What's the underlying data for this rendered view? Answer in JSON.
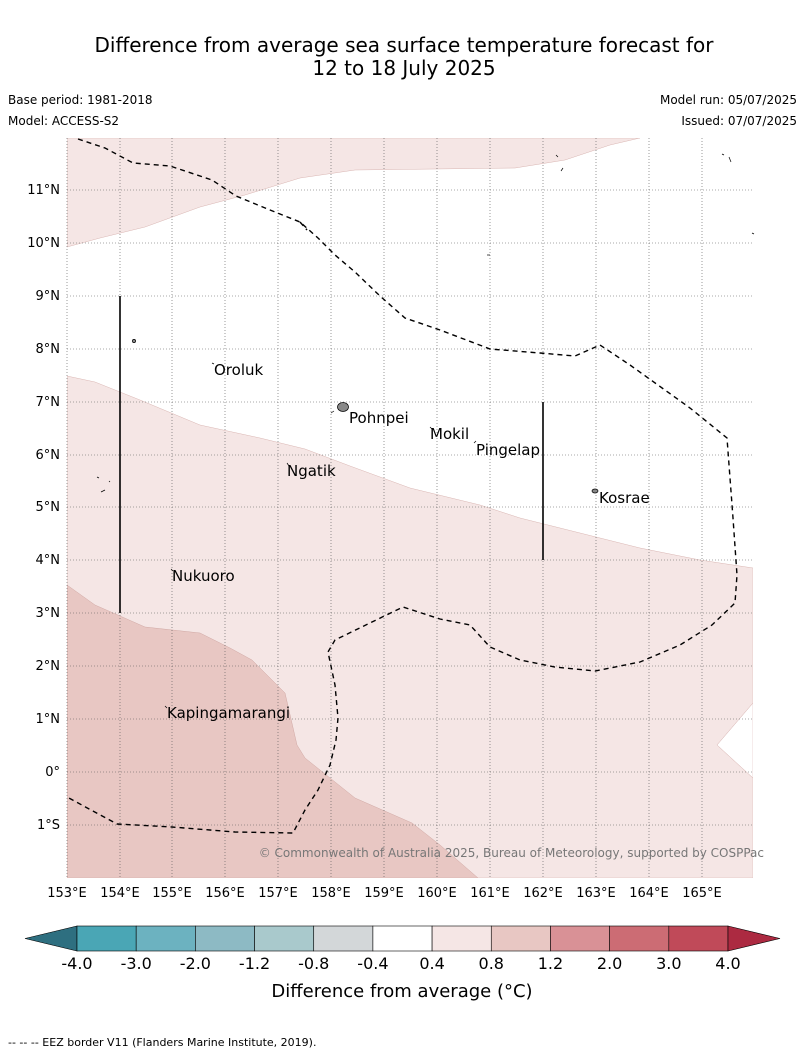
{
  "title_line1": "Difference from average sea surface temperature forecast for",
  "title_line2": "12 to 18 July 2025",
  "base_period": "Base period: 1981-2018",
  "model": "Model: ACCESS-S2",
  "model_run": "Model run: 05/07/2025",
  "issued": "Issued: 07/07/2025",
  "copyright": "© Commonwealth of Australia 2025, Bureau of Meteorology, supported by COSPPac",
  "lat_labels": [
    "11°N",
    "10°N",
    "9°N",
    "8°N",
    "7°N",
    "6°N",
    "5°N",
    "4°N",
    "3°N",
    "2°N",
    "1°N",
    "0°",
    "1°S"
  ],
  "lon_labels": [
    "153°E",
    "154°E",
    "155°E",
    "156°E",
    "157°E",
    "158°E",
    "159°E",
    "160°E",
    "161°E",
    "162°E",
    "163°E",
    "164°E",
    "165°E"
  ],
  "places": [
    {
      "name": "Oroluk"
    },
    {
      "name": "Pohnpei"
    },
    {
      "name": "Mokil"
    },
    {
      "name": "Pingelap"
    },
    {
      "name": "Ngatik"
    },
    {
      "name": "Kosrae"
    },
    {
      "name": "Nukuoro"
    },
    {
      "name": "Kapingamarangi"
    }
  ],
  "colorbar": {
    "ticks": [
      "-4.0",
      "-3.0",
      "-2.0",
      "-1.2",
      "-0.8",
      "-0.4",
      "0.4",
      "0.8",
      "1.2",
      "2.0",
      "3.0",
      "4.0"
    ],
    "colors": [
      "#2e6f80",
      "#4aa6b5",
      "#6cb2c0",
      "#8dbac4",
      "#a9c9cc",
      "#d3d7d9",
      "#ffffff",
      "#f5e6e5",
      "#e8c7c3",
      "#d99196",
      "#cc6c74",
      "#c04a59",
      "#ac2a41"
    ],
    "label": "Difference from average (°C)"
  },
  "footer": "-- -- -- EEZ border V11 (Flanders Marine Institute, 2019)."
}
